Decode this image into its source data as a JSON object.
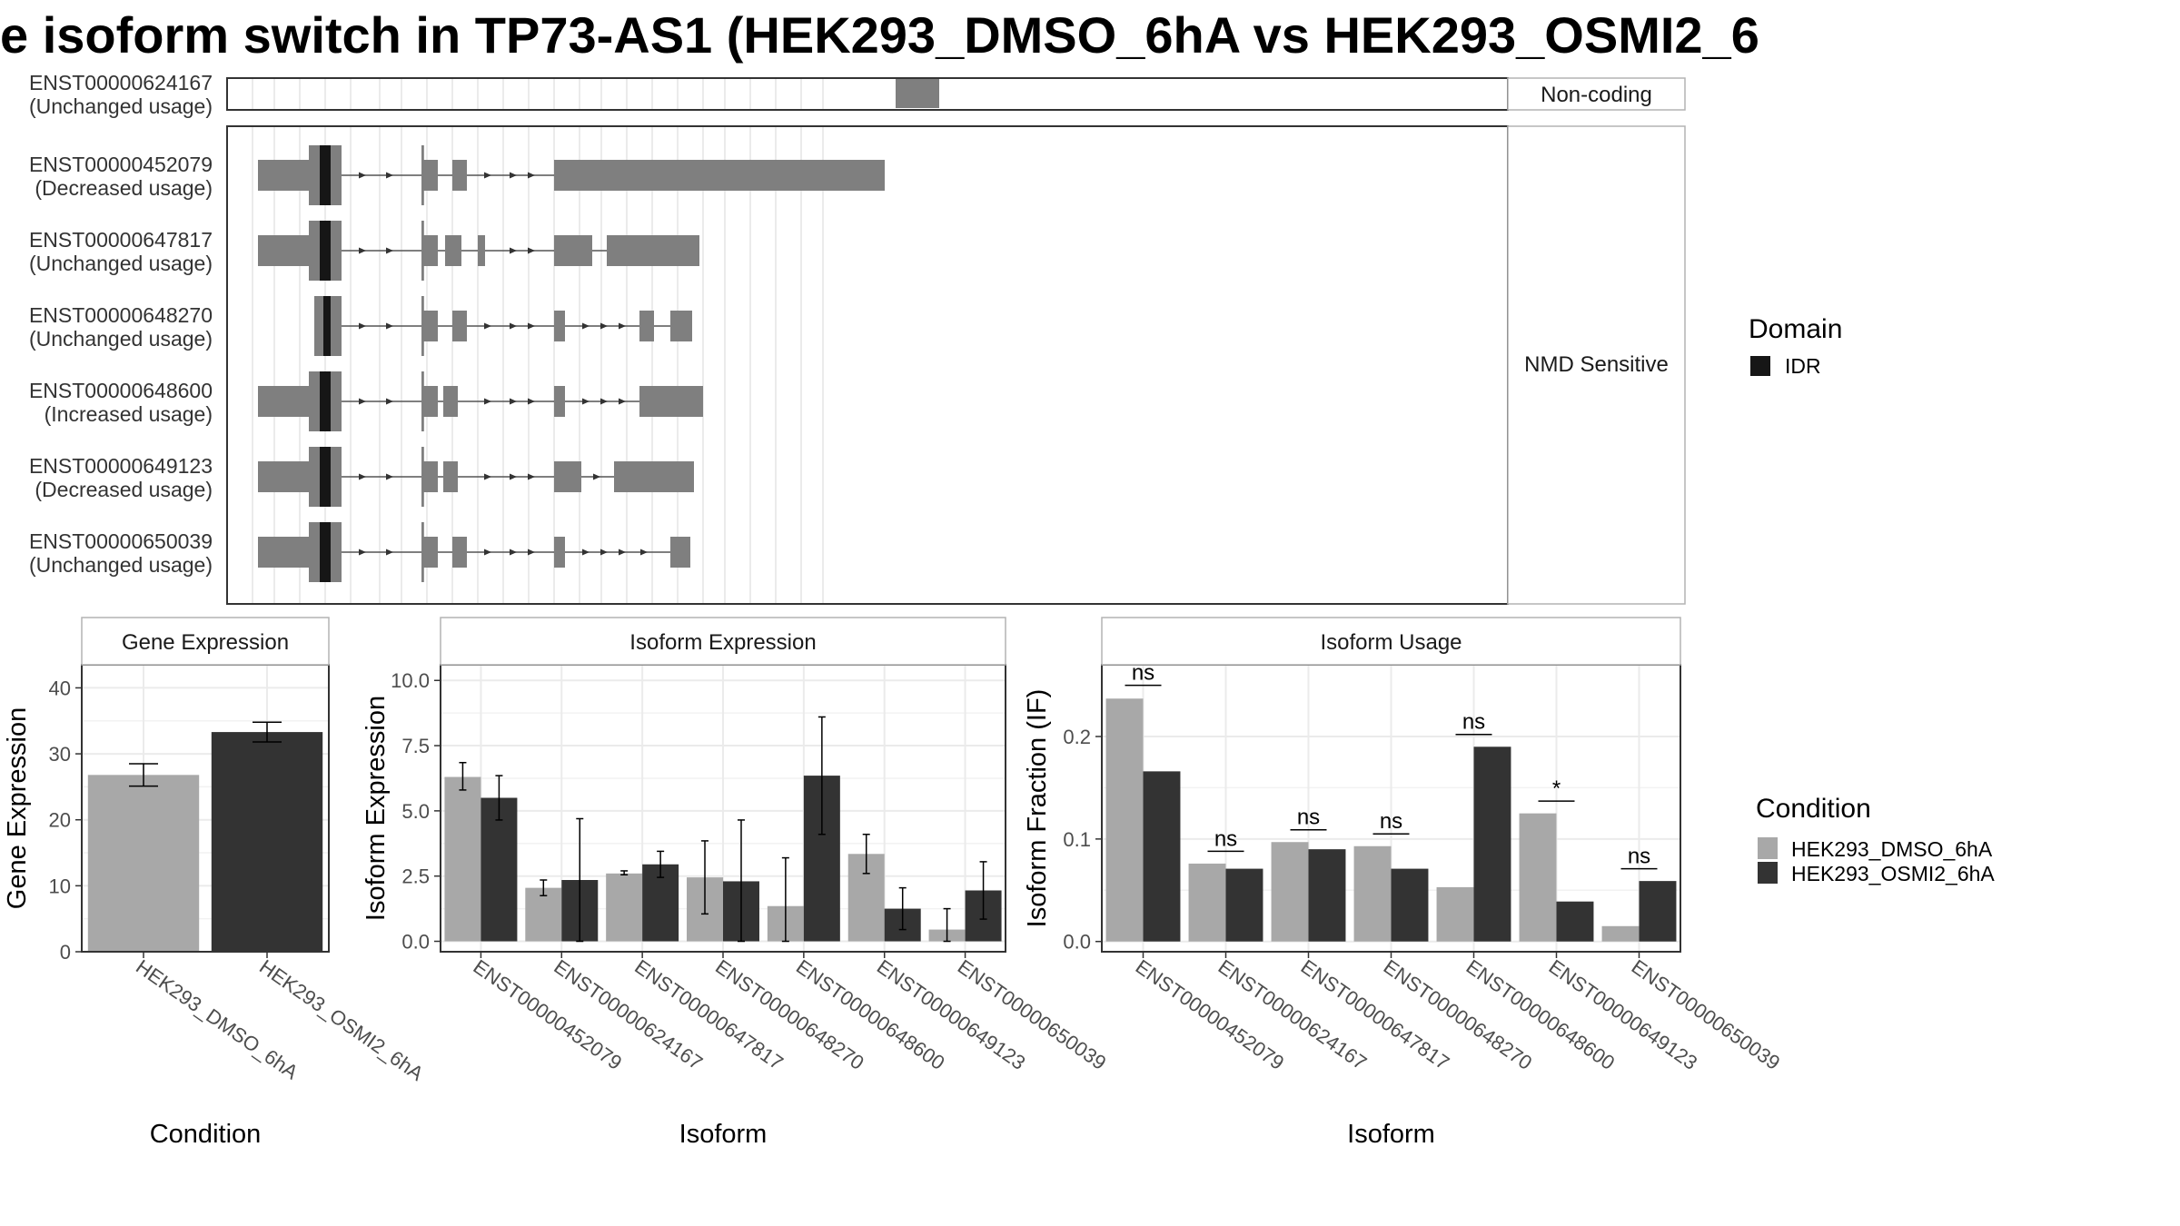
{
  "title": "e isoform switch in TP73-AS1 (HEK293_DMSO_6hA vs HEK293_OSMI2_6",
  "colors": {
    "exon": "#7f7f7f",
    "idr": "#161616",
    "dmso": "#a8a8a8",
    "osmi2": "#333333",
    "grid": "#ebebeb",
    "panel_border": "#333333",
    "strip_border": "#b3b3b3",
    "strip_fill": "#ffffff"
  },
  "transcripts": [
    {
      "id": "ENST00000624167",
      "usage": "(Unchanged usage)",
      "group": "Non-coding",
      "exons": [
        [
          1840,
          1960
        ]
      ],
      "cds": [],
      "idr": [],
      "arrows": []
    },
    {
      "id": "ENST00000452079",
      "usage": "(Decreased usage)",
      "group": "NMD Sensitive",
      "exons": [
        [
          85,
          315
        ],
        [
          535,
          580
        ],
        [
          620,
          660
        ],
        [
          900,
          1810
        ]
      ],
      "cds": [
        [
          225,
          315
        ],
        [
          535,
          542
        ]
      ],
      "idr": [
        [
          255,
          285
        ]
      ],
      "arrows": [
        375,
        450,
        720,
        790,
        840
      ]
    },
    {
      "id": "ENST00000647817",
      "usage": "(Unchanged usage)",
      "group": "NMD Sensitive",
      "exons": [
        [
          85,
          315
        ],
        [
          535,
          580
        ],
        [
          600,
          645
        ],
        [
          690,
          710
        ],
        [
          900,
          1005
        ],
        [
          1045,
          1300
        ]
      ],
      "cds": [
        [
          225,
          315
        ],
        [
          535,
          542
        ]
      ],
      "idr": [
        [
          255,
          285
        ]
      ],
      "arrows": [
        375,
        450,
        790,
        840
      ]
    },
    {
      "id": "ENST00000648270",
      "usage": "(Unchanged usage)",
      "group": "NMD Sensitive",
      "exons": [
        [
          240,
          315
        ],
        [
          535,
          580
        ],
        [
          620,
          660
        ],
        [
          900,
          930
        ],
        [
          1135,
          1175
        ],
        [
          1220,
          1280
        ]
      ],
      "cds": [
        [
          240,
          315
        ],
        [
          535,
          542
        ]
      ],
      "idr": [
        [
          265,
          285
        ]
      ],
      "arrows": [
        375,
        450,
        720,
        790,
        840,
        990,
        1040,
        1090
      ]
    },
    {
      "id": "ENST00000648600",
      "usage": "(Increased usage)",
      "group": "NMD Sensitive",
      "exons": [
        [
          85,
          315
        ],
        [
          535,
          580
        ],
        [
          595,
          635
        ],
        [
          900,
          930
        ],
        [
          1135,
          1310
        ]
      ],
      "cds": [
        [
          225,
          315
        ],
        [
          535,
          542
        ]
      ],
      "idr": [
        [
          255,
          285
        ]
      ],
      "arrows": [
        375,
        450,
        720,
        790,
        840,
        990,
        1040,
        1090
      ]
    },
    {
      "id": "ENST00000649123",
      "usage": "(Decreased usage)",
      "group": "NMD Sensitive",
      "exons": [
        [
          85,
          315
        ],
        [
          535,
          580
        ],
        [
          595,
          635
        ],
        [
          900,
          975
        ],
        [
          1065,
          1285
        ]
      ],
      "cds": [
        [
          225,
          315
        ],
        [
          535,
          542
        ]
      ],
      "idr": [
        [
          255,
          285
        ]
      ],
      "arrows": [
        375,
        450,
        720,
        790,
        840,
        1020
      ]
    },
    {
      "id": "ENST00000650039",
      "usage": "(Unchanged usage)",
      "group": "NMD Sensitive",
      "exons": [
        [
          85,
          315
        ],
        [
          535,
          580
        ],
        [
          620,
          660
        ],
        [
          900,
          930
        ],
        [
          1220,
          1275
        ]
      ],
      "cds": [
        [
          225,
          315
        ],
        [
          535,
          542
        ]
      ],
      "idr": [
        [
          255,
          285
        ]
      ],
      "arrows": [
        375,
        450,
        720,
        790,
        840,
        990,
        1040,
        1090,
        1150
      ]
    }
  ],
  "group_labels": {
    "noncoding": "Non-coding",
    "nmd": "NMD Sensitive"
  },
  "domain_legend": {
    "title": "Domain",
    "items": [
      {
        "label": "IDR",
        "color": "#161616"
      }
    ]
  },
  "condition_legend": {
    "title": "Condition",
    "items": [
      {
        "label": "HEK293_DMSO_6hA",
        "color": "#a8a8a8"
      },
      {
        "label": "HEK293_OSMI2_6hA",
        "color": "#333333"
      }
    ]
  },
  "chart_data": [
    {
      "type": "bar",
      "title": "Gene Expression",
      "xlabel": "Condition",
      "ylabel": "Gene Expression",
      "ylim": [
        0,
        43.5
      ],
      "yticks": [
        0,
        10,
        20,
        30,
        40
      ],
      "ytick_labels": [
        "0",
        "10",
        "20",
        "30",
        "40"
      ],
      "categories": [
        "HEK293_DMSO_6hA",
        "HEK293_OSMI2_6hA"
      ],
      "values": [
        26.8,
        33.3
      ],
      "errors": [
        [
          25.1,
          28.5
        ],
        [
          31.8,
          34.8
        ]
      ]
    },
    {
      "type": "bar",
      "title": "Isoform Expression",
      "xlabel": "Isoform",
      "ylabel": "Isoform Expression",
      "ylim": [
        -0.4,
        10.6
      ],
      "yticks": [
        0,
        2.5,
        5,
        7.5,
        10
      ],
      "ytick_labels": [
        "0.0",
        "2.5",
        "5.0",
        "7.5",
        "10.0"
      ],
      "categories": [
        "ENST00000452079",
        "ENST00000624167",
        "ENST00000647817",
        "ENST00000648270",
        "ENST00000648600",
        "ENST00000649123",
        "ENST00000650039"
      ],
      "series": [
        {
          "name": "HEK293_DMSO_6hA",
          "values": [
            6.3,
            2.05,
            2.6,
            2.45,
            1.35,
            3.35,
            0.45
          ],
          "errors": [
            [
              5.8,
              6.85
            ],
            [
              1.75,
              2.35
            ],
            [
              2.55,
              2.7
            ],
            [
              1.05,
              3.85
            ],
            [
              0.0,
              3.2
            ],
            [
              2.6,
              4.1
            ],
            [
              0.0,
              1.25
            ]
          ]
        },
        {
          "name": "HEK293_OSMI2_6hA",
          "values": [
            5.5,
            2.35,
            2.95,
            2.3,
            6.35,
            1.25,
            1.95
          ],
          "errors": [
            [
              4.65,
              6.35
            ],
            [
              0.0,
              4.7
            ],
            [
              2.45,
              3.45
            ],
            [
              0.0,
              4.65
            ],
            [
              4.1,
              8.6
            ],
            [
              0.45,
              2.05
            ],
            [
              0.85,
              3.05
            ]
          ]
        }
      ]
    },
    {
      "type": "bar",
      "title": "Isoform Usage",
      "xlabel": "Isoform",
      "ylabel": "Isoform Fraction (IF)",
      "ylim": [
        -0.01,
        0.27
      ],
      "yticks": [
        0,
        0.1,
        0.2
      ],
      "ytick_labels": [
        "0.0",
        "0.1",
        "0.2"
      ],
      "categories": [
        "ENST00000452079",
        "ENST00000624167",
        "ENST00000647817",
        "ENST00000648270",
        "ENST00000648600",
        "ENST00000649123",
        "ENST00000650039"
      ],
      "series": [
        {
          "name": "HEK293_DMSO_6hA",
          "values": [
            0.237,
            0.076,
            0.097,
            0.093,
            0.053,
            0.125,
            0.015
          ]
        },
        {
          "name": "HEK293_OSMI2_6hA",
          "values": [
            0.166,
            0.071,
            0.09,
            0.071,
            0.19,
            0.039,
            0.059
          ]
        }
      ],
      "significance": [
        {
          "label": "ns",
          "y": 0.25
        },
        {
          "label": "ns",
          "y": 0.088
        },
        {
          "label": "ns",
          "y": 0.109
        },
        {
          "label": "ns",
          "y": 0.105
        },
        {
          "label": "ns",
          "y": 0.202
        },
        {
          "label": "*",
          "y": 0.137
        },
        {
          "label": "ns",
          "y": 0.071
        }
      ]
    }
  ]
}
